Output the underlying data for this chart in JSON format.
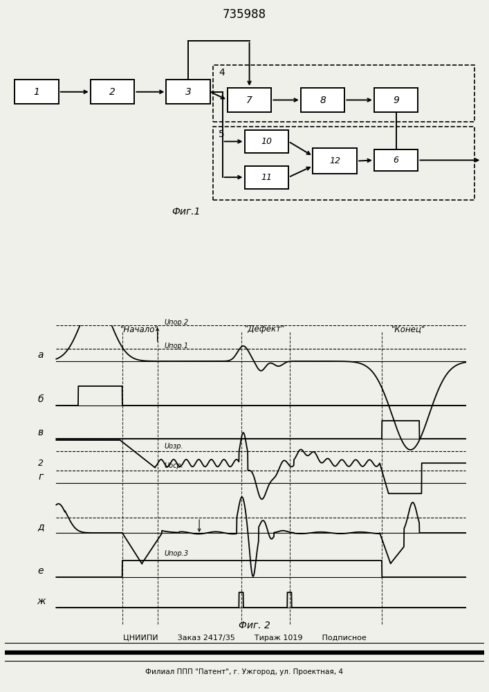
{
  "title": "735988",
  "fig1_caption": "Фиг.1",
  "fig2_caption": "Фиг. 2",
  "footer_line1": "ЦНИИПИ        Заказ 2417/35        Тираж 1019        Подписное",
  "footer_line2": "Филиал ППП \"Патент\", г. Ужгород, ул. Проектная, 4",
  "group4_label": "4",
  "group5_label": "5",
  "zone_labels": [
    "\"Начало\"",
    "\"Дефект\"",
    "\"Конец\""
  ],
  "bg_color": "#f0f0ea",
  "white": "#ffffff"
}
